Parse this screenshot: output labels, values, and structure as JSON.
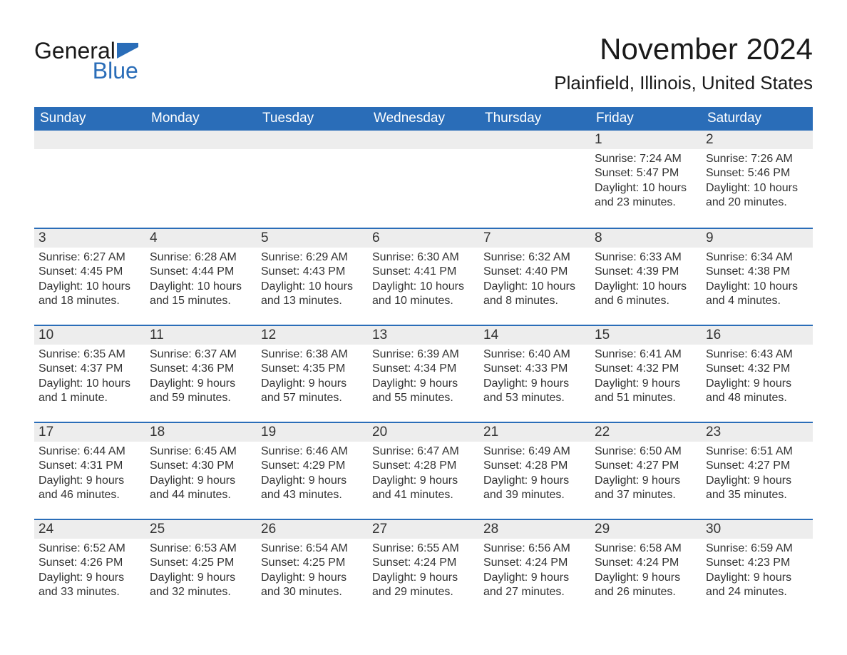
{
  "logo": {
    "text1": "General",
    "text2": "Blue"
  },
  "title": "November 2024",
  "location": "Plainfield, Illinois, United States",
  "colors": {
    "header_bg": "#2a6db8",
    "header_text": "#ffffff",
    "daynum_bg": "#ededed",
    "border": "#2a6db8",
    "text": "#333333",
    "logo_blue": "#2a6db8",
    "page_bg": "#ffffff"
  },
  "typography": {
    "title_fontsize": 42,
    "location_fontsize": 26,
    "header_fontsize": 19,
    "daynum_fontsize": 19,
    "body_fontsize": 16
  },
  "layout": {
    "columns": 7,
    "rows": 5,
    "cell_min_height": 136
  },
  "weekdays": [
    "Sunday",
    "Monday",
    "Tuesday",
    "Wednesday",
    "Thursday",
    "Friday",
    "Saturday"
  ],
  "leading_blanks": 5,
  "days": [
    {
      "n": "1",
      "sunrise": "Sunrise: 7:24 AM",
      "sunset": "Sunset: 5:47 PM",
      "dl1": "Daylight: 10 hours",
      "dl2": "and 23 minutes."
    },
    {
      "n": "2",
      "sunrise": "Sunrise: 7:26 AM",
      "sunset": "Sunset: 5:46 PM",
      "dl1": "Daylight: 10 hours",
      "dl2": "and 20 minutes."
    },
    {
      "n": "3",
      "sunrise": "Sunrise: 6:27 AM",
      "sunset": "Sunset: 4:45 PM",
      "dl1": "Daylight: 10 hours",
      "dl2": "and 18 minutes."
    },
    {
      "n": "4",
      "sunrise": "Sunrise: 6:28 AM",
      "sunset": "Sunset: 4:44 PM",
      "dl1": "Daylight: 10 hours",
      "dl2": "and 15 minutes."
    },
    {
      "n": "5",
      "sunrise": "Sunrise: 6:29 AM",
      "sunset": "Sunset: 4:43 PM",
      "dl1": "Daylight: 10 hours",
      "dl2": "and 13 minutes."
    },
    {
      "n": "6",
      "sunrise": "Sunrise: 6:30 AM",
      "sunset": "Sunset: 4:41 PM",
      "dl1": "Daylight: 10 hours",
      "dl2": "and 10 minutes."
    },
    {
      "n": "7",
      "sunrise": "Sunrise: 6:32 AM",
      "sunset": "Sunset: 4:40 PM",
      "dl1": "Daylight: 10 hours",
      "dl2": "and 8 minutes."
    },
    {
      "n": "8",
      "sunrise": "Sunrise: 6:33 AM",
      "sunset": "Sunset: 4:39 PM",
      "dl1": "Daylight: 10 hours",
      "dl2": "and 6 minutes."
    },
    {
      "n": "9",
      "sunrise": "Sunrise: 6:34 AM",
      "sunset": "Sunset: 4:38 PM",
      "dl1": "Daylight: 10 hours",
      "dl2": "and 4 minutes."
    },
    {
      "n": "10",
      "sunrise": "Sunrise: 6:35 AM",
      "sunset": "Sunset: 4:37 PM",
      "dl1": "Daylight: 10 hours",
      "dl2": "and 1 minute."
    },
    {
      "n": "11",
      "sunrise": "Sunrise: 6:37 AM",
      "sunset": "Sunset: 4:36 PM",
      "dl1": "Daylight: 9 hours",
      "dl2": "and 59 minutes."
    },
    {
      "n": "12",
      "sunrise": "Sunrise: 6:38 AM",
      "sunset": "Sunset: 4:35 PM",
      "dl1": "Daylight: 9 hours",
      "dl2": "and 57 minutes."
    },
    {
      "n": "13",
      "sunrise": "Sunrise: 6:39 AM",
      "sunset": "Sunset: 4:34 PM",
      "dl1": "Daylight: 9 hours",
      "dl2": "and 55 minutes."
    },
    {
      "n": "14",
      "sunrise": "Sunrise: 6:40 AM",
      "sunset": "Sunset: 4:33 PM",
      "dl1": "Daylight: 9 hours",
      "dl2": "and 53 minutes."
    },
    {
      "n": "15",
      "sunrise": "Sunrise: 6:41 AM",
      "sunset": "Sunset: 4:32 PM",
      "dl1": "Daylight: 9 hours",
      "dl2": "and 51 minutes."
    },
    {
      "n": "16",
      "sunrise": "Sunrise: 6:43 AM",
      "sunset": "Sunset: 4:32 PM",
      "dl1": "Daylight: 9 hours",
      "dl2": "and 48 minutes."
    },
    {
      "n": "17",
      "sunrise": "Sunrise: 6:44 AM",
      "sunset": "Sunset: 4:31 PM",
      "dl1": "Daylight: 9 hours",
      "dl2": "and 46 minutes."
    },
    {
      "n": "18",
      "sunrise": "Sunrise: 6:45 AM",
      "sunset": "Sunset: 4:30 PM",
      "dl1": "Daylight: 9 hours",
      "dl2": "and 44 minutes."
    },
    {
      "n": "19",
      "sunrise": "Sunrise: 6:46 AM",
      "sunset": "Sunset: 4:29 PM",
      "dl1": "Daylight: 9 hours",
      "dl2": "and 43 minutes."
    },
    {
      "n": "20",
      "sunrise": "Sunrise: 6:47 AM",
      "sunset": "Sunset: 4:28 PM",
      "dl1": "Daylight: 9 hours",
      "dl2": "and 41 minutes."
    },
    {
      "n": "21",
      "sunrise": "Sunrise: 6:49 AM",
      "sunset": "Sunset: 4:28 PM",
      "dl1": "Daylight: 9 hours",
      "dl2": "and 39 minutes."
    },
    {
      "n": "22",
      "sunrise": "Sunrise: 6:50 AM",
      "sunset": "Sunset: 4:27 PM",
      "dl1": "Daylight: 9 hours",
      "dl2": "and 37 minutes."
    },
    {
      "n": "23",
      "sunrise": "Sunrise: 6:51 AM",
      "sunset": "Sunset: 4:27 PM",
      "dl1": "Daylight: 9 hours",
      "dl2": "and 35 minutes."
    },
    {
      "n": "24",
      "sunrise": "Sunrise: 6:52 AM",
      "sunset": "Sunset: 4:26 PM",
      "dl1": "Daylight: 9 hours",
      "dl2": "and 33 minutes."
    },
    {
      "n": "25",
      "sunrise": "Sunrise: 6:53 AM",
      "sunset": "Sunset: 4:25 PM",
      "dl1": "Daylight: 9 hours",
      "dl2": "and 32 minutes."
    },
    {
      "n": "26",
      "sunrise": "Sunrise: 6:54 AM",
      "sunset": "Sunset: 4:25 PM",
      "dl1": "Daylight: 9 hours",
      "dl2": "and 30 minutes."
    },
    {
      "n": "27",
      "sunrise": "Sunrise: 6:55 AM",
      "sunset": "Sunset: 4:24 PM",
      "dl1": "Daylight: 9 hours",
      "dl2": "and 29 minutes."
    },
    {
      "n": "28",
      "sunrise": "Sunrise: 6:56 AM",
      "sunset": "Sunset: 4:24 PM",
      "dl1": "Daylight: 9 hours",
      "dl2": "and 27 minutes."
    },
    {
      "n": "29",
      "sunrise": "Sunrise: 6:58 AM",
      "sunset": "Sunset: 4:24 PM",
      "dl1": "Daylight: 9 hours",
      "dl2": "and 26 minutes."
    },
    {
      "n": "30",
      "sunrise": "Sunrise: 6:59 AM",
      "sunset": "Sunset: 4:23 PM",
      "dl1": "Daylight: 9 hours",
      "dl2": "and 24 minutes."
    }
  ]
}
